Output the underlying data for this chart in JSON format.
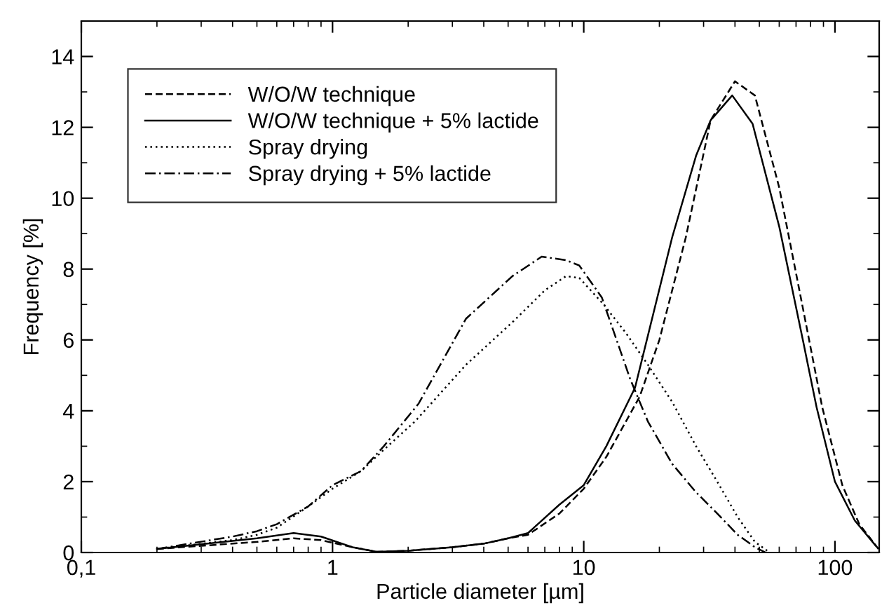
{
  "chart_data": {
    "type": "line",
    "xlabel": "Particle diameter [µm]",
    "ylabel": "Frequency [%]",
    "log": "x",
    "xlim": [
      0.1,
      150
    ],
    "xticks": [
      {
        "value": 0.1,
        "label": "0,1"
      },
      1,
      10,
      100
    ],
    "ylim": [
      0,
      15
    ],
    "yticks": [
      0,
      2,
      4,
      6,
      8,
      10,
      12,
      14
    ],
    "grid": false,
    "legend": "top left",
    "marker": "none",
    "series": [
      {
        "name": "W/O/W technique",
        "color": "#000000",
        "line_style": "dashed",
        "x": [
          0.2,
          0.5,
          0.7,
          0.9,
          1.2,
          1.5,
          2,
          3,
          4,
          5,
          6,
          8,
          10,
          12.3,
          16.7,
          20,
          25.5,
          32,
          40,
          48,
          60,
          75,
          89,
          107,
          125,
          149
        ],
        "values": [
          0.1,
          0.3,
          0.4,
          0.35,
          0.15,
          0.02,
          0.05,
          0.15,
          0.25,
          0.4,
          0.5,
          1.1,
          1.8,
          2.7,
          4.4,
          6.0,
          8.9,
          12.2,
          13.3,
          12.9,
          10.3,
          6.8,
          4.1,
          1.9,
          0.8,
          0.1
        ]
      },
      {
        "name": "W/O/W technique + 5% lactide",
        "color": "#000000",
        "line_style": "solid",
        "x": [
          0.2,
          0.5,
          0.7,
          0.9,
          1.2,
          1.5,
          2,
          3,
          4,
          5,
          6,
          8,
          10,
          12.3,
          16,
          22.5,
          28,
          32,
          39,
          47,
          60,
          75,
          84.5,
          100,
          120,
          145
        ],
        "values": [
          0.1,
          0.4,
          0.55,
          0.45,
          0.15,
          0.02,
          0.05,
          0.15,
          0.25,
          0.4,
          0.55,
          1.35,
          1.9,
          3.0,
          4.65,
          8.9,
          11.2,
          12.2,
          12.9,
          12.1,
          9.2,
          5.9,
          4.1,
          2.0,
          0.9,
          0.2
        ]
      },
      {
        "name": "Spray drying",
        "color": "#000000",
        "line_style": "dotted",
        "x": [
          0.2,
          0.4,
          0.5,
          0.6,
          0.8,
          1,
          1.3,
          1.6,
          2.13,
          3.4,
          5.2,
          7,
          8.5,
          9.6,
          12,
          14.7,
          18,
          22.5,
          28,
          34,
          41,
          48,
          55
        ],
        "values": [
          0.1,
          0.35,
          0.5,
          0.7,
          1.3,
          1.8,
          2.3,
          2.9,
          3.7,
          5.3,
          6.5,
          7.4,
          7.8,
          7.75,
          7.0,
          6.2,
          5.3,
          4.25,
          3.0,
          2.0,
          1.0,
          0.3,
          0.0
        ]
      },
      {
        "name": "Spray drying + 5% lactide",
        "color": "#000000",
        "line_style": "dashdot",
        "x": [
          0.2,
          0.4,
          0.5,
          0.6,
          0.8,
          1,
          1.3,
          1.6,
          2.2,
          3.4,
          5.2,
          6.8,
          8.5,
          9.6,
          11.8,
          15.3,
          18,
          22.5,
          28,
          34,
          41,
          48,
          53
        ],
        "values": [
          0.1,
          0.45,
          0.6,
          0.8,
          1.3,
          1.9,
          2.3,
          3.0,
          4.2,
          6.6,
          7.8,
          8.35,
          8.25,
          8.1,
          7.2,
          4.9,
          3.7,
          2.5,
          1.7,
          1.1,
          0.5,
          0.15,
          0.0
        ]
      }
    ]
  }
}
